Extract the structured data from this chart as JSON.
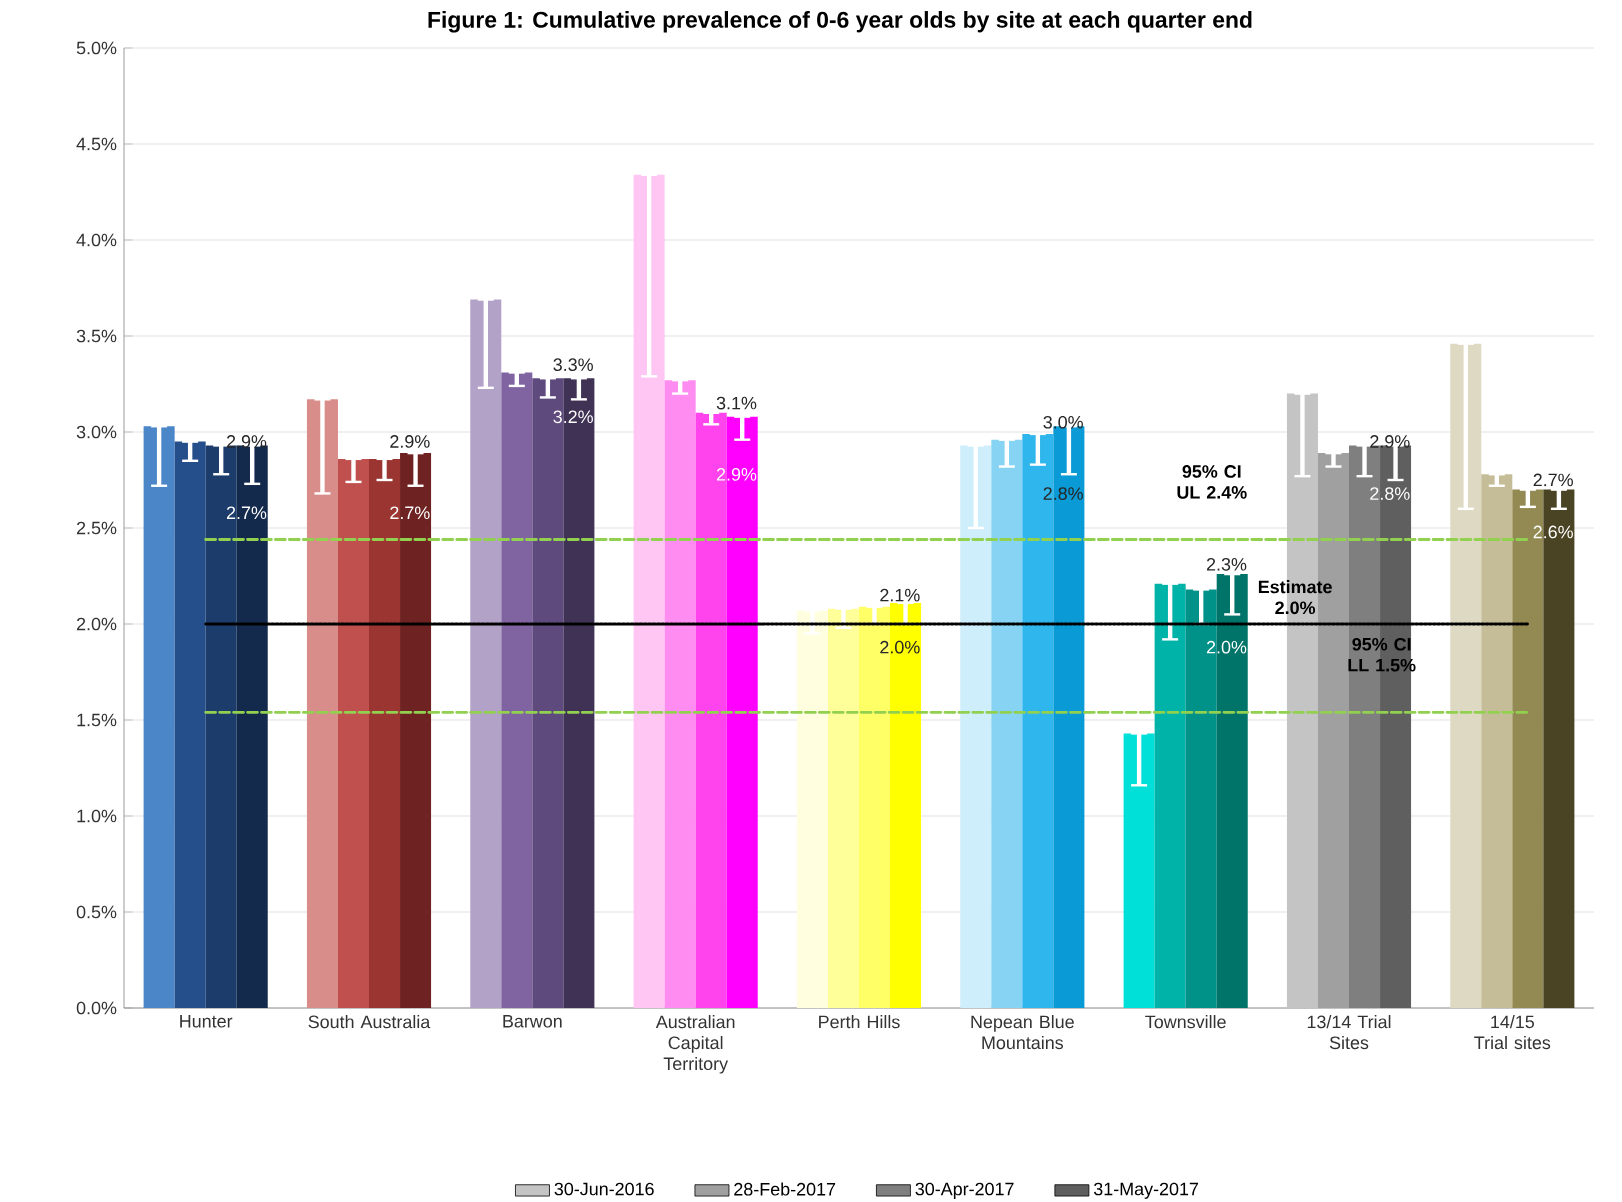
{
  "chart_data": {
    "type": "bar",
    "title": "Figure 1: Cumulative prevalence of 0-6 year olds by site at each quarter end",
    "categories": [
      "Hunter",
      "South Australia",
      "Barwon",
      "Australian Capital Territory",
      "Perth Hills",
      "Nepean Blue Mountains",
      "Townsville",
      "13/14 Trial Sites",
      "14/15 Trial sites"
    ],
    "series": [
      {
        "name": "30-Jun-2016",
        "color": "#c4c4c4",
        "values": [
          3.03,
          3.17,
          3.69,
          4.34,
          2.07,
          2.93,
          1.43,
          3.2,
          3.46
        ],
        "errors": [
          [
            2.72,
            3.03
          ],
          [
            2.68,
            3.17
          ],
          [
            3.23,
            3.69
          ],
          [
            3.29,
            4.34
          ],
          [
            1.95,
            2.07
          ],
          [
            2.5,
            2.93
          ],
          [
            1.16,
            1.43
          ],
          [
            2.77,
            3.2
          ],
          [
            2.6,
            3.46
          ]
        ],
        "colors": [
          "#4a86c8",
          "#d98d8a",
          "#b3a2c7",
          "#ffc6f4",
          "#ffffe0",
          "#cdeefa",
          "#00e0d8",
          "#c4c4c4",
          "#ddd9c3"
        ]
      },
      {
        "name": "28-Feb-2017",
        "color": "#a0a0a0",
        "values": [
          2.95,
          2.86,
          3.31,
          3.27,
          2.08,
          2.96,
          2.21,
          2.89,
          2.78
        ],
        "errors": [
          [
            2.85,
            2.95
          ],
          [
            2.74,
            2.86
          ],
          [
            3.24,
            3.31
          ],
          [
            3.2,
            3.27
          ],
          [
            1.98,
            2.08
          ],
          [
            2.82,
            2.96
          ],
          [
            1.92,
            2.21
          ],
          [
            2.82,
            2.89
          ],
          [
            2.72,
            2.78
          ]
        ],
        "colors": [
          "#254f8a",
          "#c0504d",
          "#8064a2",
          "#ff8cf0",
          "#ffff99",
          "#87d3f3",
          "#00b3a8",
          "#a0a0a0",
          "#c4bd97"
        ]
      },
      {
        "name": "30-Apr-2017",
        "color": "#7f7f7f",
        "values": [
          2.93,
          2.86,
          3.28,
          3.1,
          2.09,
          2.99,
          2.18,
          2.93,
          2.7
        ],
        "errors": [
          [
            2.78,
            2.93
          ],
          [
            2.75,
            2.86
          ],
          [
            3.18,
            3.28
          ],
          [
            3.04,
            3.1
          ],
          [
            2.0,
            2.09
          ],
          [
            2.83,
            2.99
          ],
          [
            2.0,
            2.18
          ],
          [
            2.77,
            2.93
          ],
          [
            2.61,
            2.7
          ]
        ],
        "colors": [
          "#1c3d6c",
          "#9b3532",
          "#5f4a7e",
          "#ff44ee",
          "#ffff66",
          "#2fb6ec",
          "#009289",
          "#7f7f7f",
          "#938953"
        ]
      },
      {
        "name": "31-May-2017",
        "color": "#5f5f5f",
        "values": [
          2.93,
          2.89,
          3.28,
          3.08,
          2.11,
          3.03,
          2.26,
          2.93,
          2.7
        ],
        "errors": [
          [
            2.73,
            2.93
          ],
          [
            2.72,
            2.89
          ],
          [
            3.17,
            3.28
          ],
          [
            2.96,
            3.08
          ],
          [
            2.0,
            2.11
          ],
          [
            2.78,
            3.03
          ],
          [
            2.05,
            2.26
          ],
          [
            2.75,
            2.93
          ],
          [
            2.6,
            2.7
          ]
        ],
        "colors": [
          "#142a4c",
          "#6e2322",
          "#3f3254",
          "#ff00ff",
          "#ffff00",
          "#0a9ad6",
          "#007468",
          "#5f5f5f",
          "#4a4424"
        ]
      }
    ],
    "annotations": [
      {
        "text": "2.9%",
        "x": "Hunter",
        "y": 2.9
      },
      {
        "text": "2.7%",
        "x": "Hunter",
        "y": 2.7
      },
      {
        "text": "2.9%",
        "x": "South Australia",
        "y": 2.9
      },
      {
        "text": "2.7%",
        "x": "South Australia",
        "y": 2.7
      },
      {
        "text": "3.3%",
        "x": "Barwon",
        "y": 3.3
      },
      {
        "text": "3.2%",
        "x": "Barwon",
        "y": 3.2
      },
      {
        "text": "3.1%",
        "x": "Australian Capital Territory",
        "y": 3.1
      },
      {
        "text": "2.9%",
        "x": "Australian Capital Territory",
        "y": 2.9
      },
      {
        "text": "2.1%",
        "x": "Perth Hills",
        "y": 2.1
      },
      {
        "text": "2.0%",
        "x": "Perth Hills",
        "y": 2.0
      },
      {
        "text": "3.0%",
        "x": "Nepean Blue Mountains",
        "y": 3.0
      },
      {
        "text": "2.8%",
        "x": "Nepean Blue Mountains",
        "y": 2.8
      },
      "2.3%",
      {
        "text": "2.0%",
        "x": "Townsville",
        "y": 2.0
      },
      {
        "text": "2.9%",
        "x": "13/14 Trial Sites",
        "y": 2.9
      },
      {
        "text": "2.8%",
        "x": "13/14 Trial Sites",
        "y": 2.8
      },
      {
        "text": "2.7%",
        "x": "14/15 Trial sites",
        "y": 2.7
      },
      {
        "text": "2.6%",
        "x": "14/15 Trial sites",
        "y": 2.6
      }
    ],
    "ref_lines": [
      {
        "axis": "y",
        "value": 2.44,
        "label": "95% CI UL 2.4%",
        "color": "#92d050",
        "line_style": "dashed"
      },
      {
        "axis": "y",
        "value": 2.0,
        "label": "Estimate 2.0%",
        "color": "#000000",
        "line_style": "dotted"
      },
      {
        "axis": "y",
        "value": 1.54,
        "label": "95% CI LL 1.5%",
        "color": "#92d050",
        "line_style": "dashed"
      }
    ],
    "ylim": [
      0,
      5
    ],
    "yticks": [
      {
        "value": 0,
        "label": "0.0%"
      },
      {
        "value": 0.5,
        "label": "0.5%"
      },
      {
        "value": 1,
        "label": "1.0%"
      },
      {
        "value": 1.5,
        "label": "1.5%"
      },
      {
        "value": 2,
        "label": "2.0%"
      },
      {
        "value": 2.5,
        "label": "2.5%"
      },
      {
        "value": 3,
        "label": "3.0%"
      },
      {
        "value": 3.5,
        "label": "3.5%"
      },
      {
        "value": 4,
        "label": "4.0%"
      },
      {
        "value": 4.5,
        "label": "4.5%"
      },
      {
        "value": 5,
        "label": "5.0%"
      }
    ],
    "grid": "y",
    "legend": "bottom"
  }
}
